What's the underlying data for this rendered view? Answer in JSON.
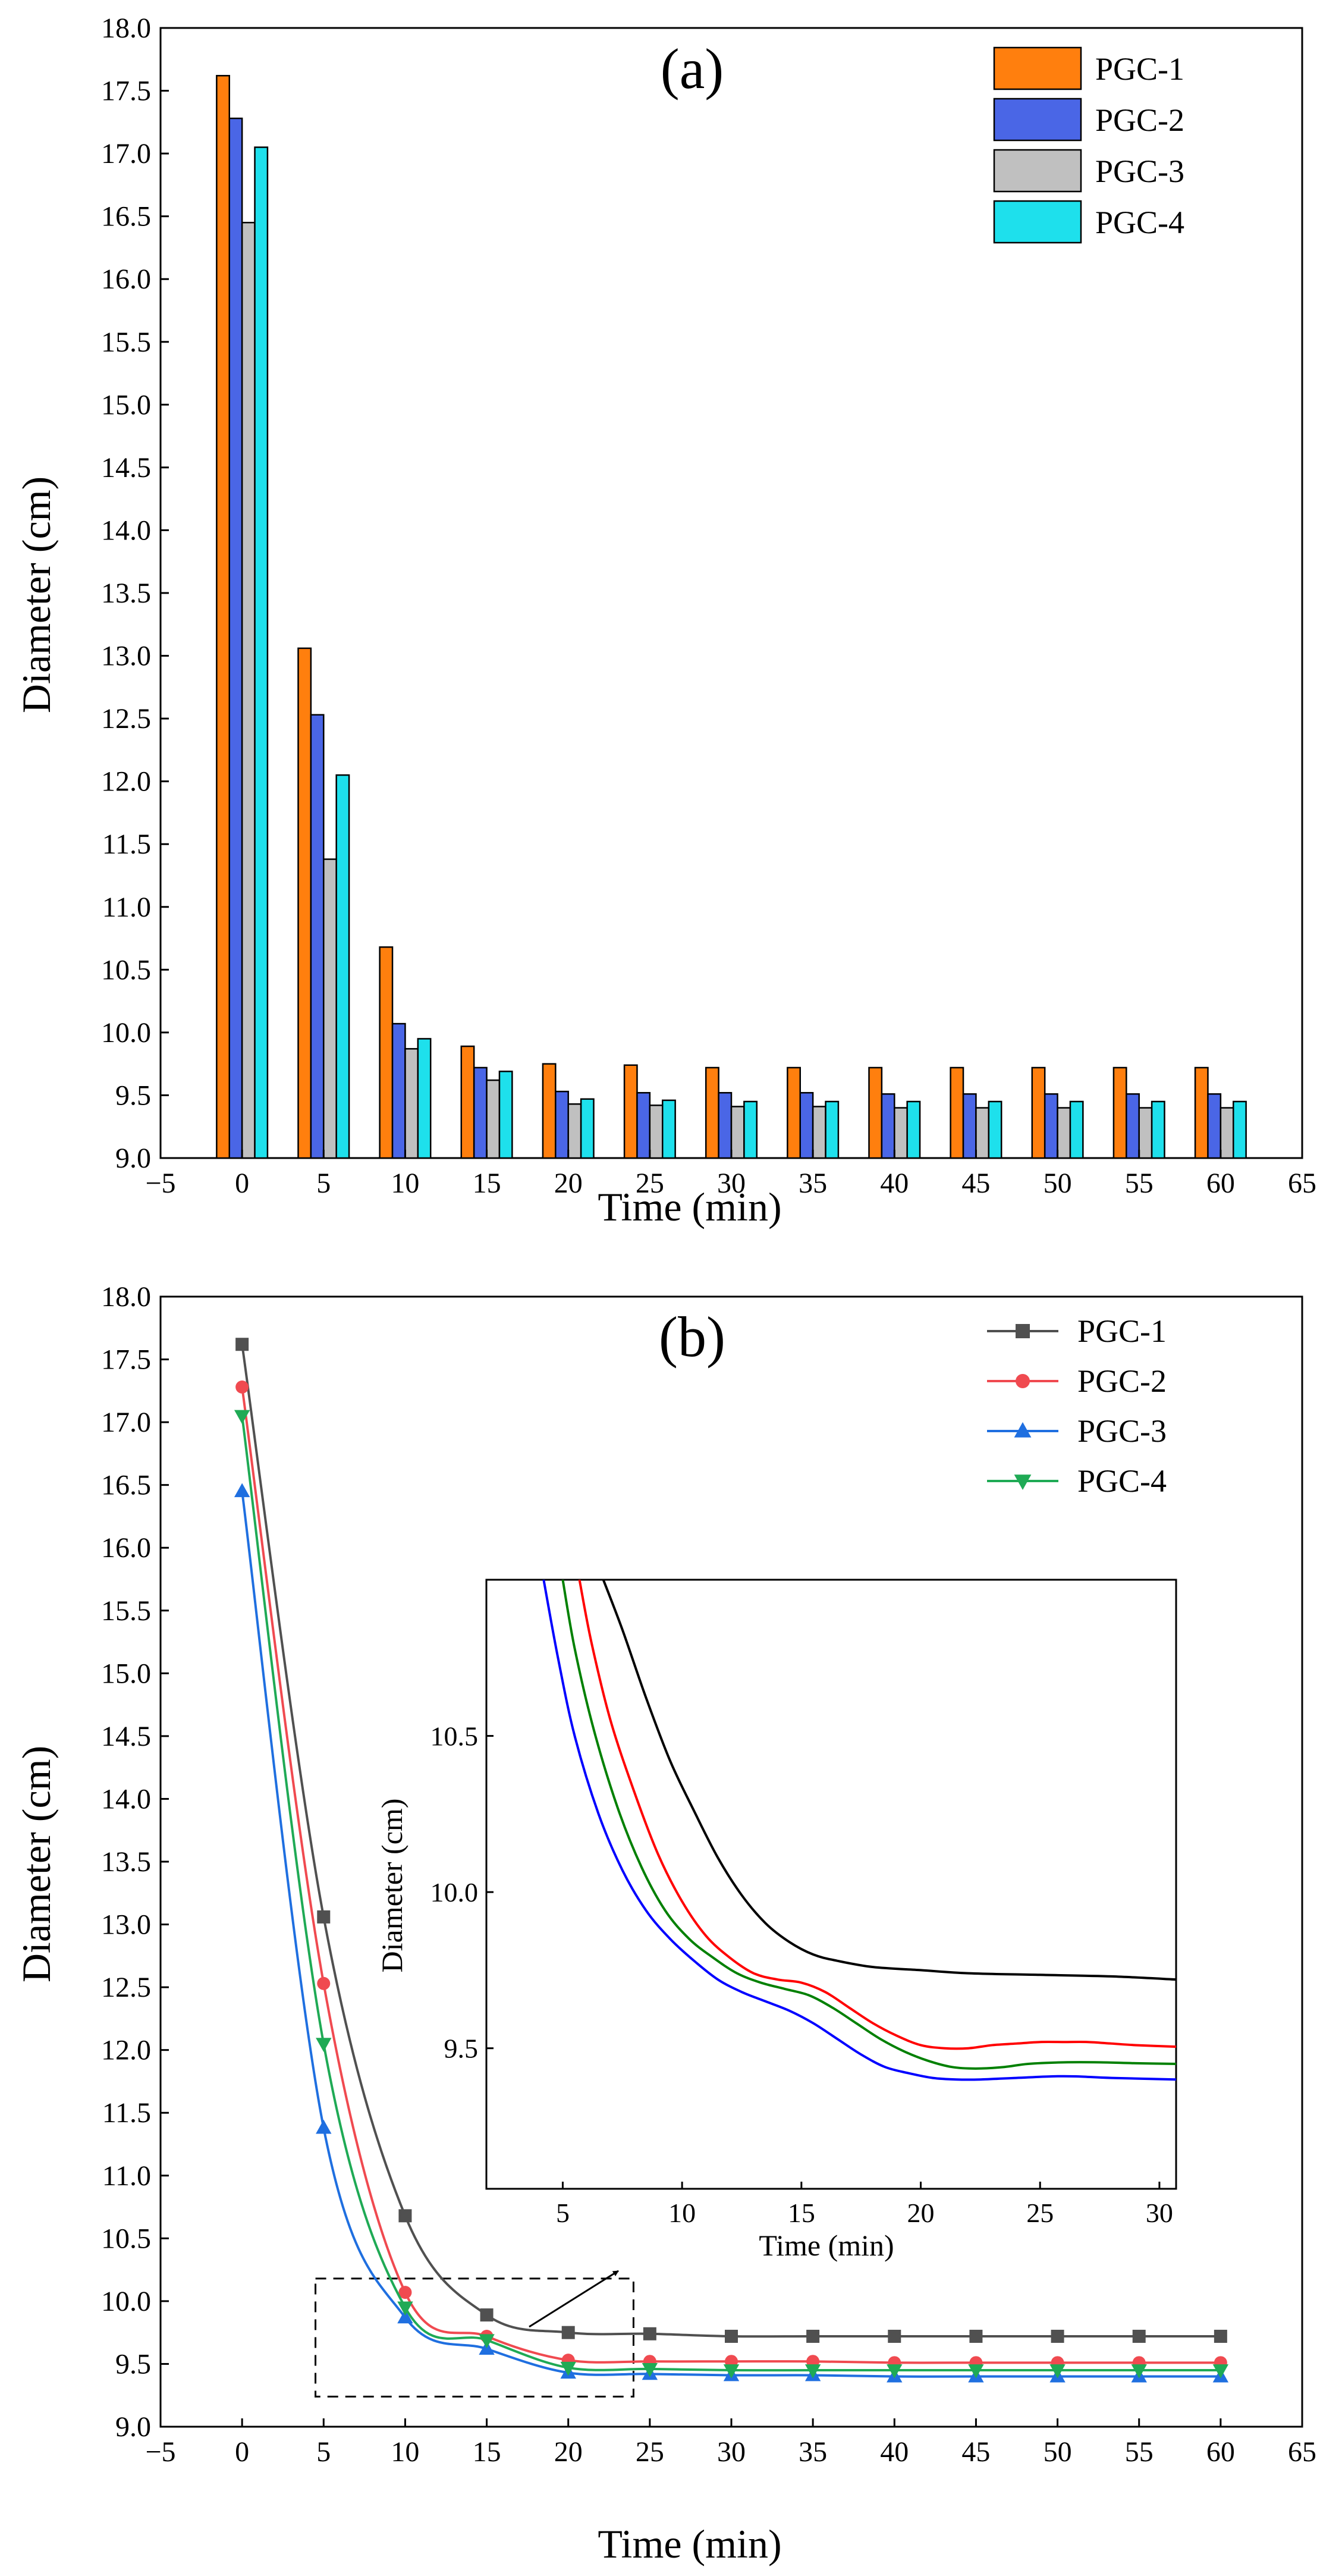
{
  "chart_data": [
    {
      "type": "bar",
      "panel_label": "(a)",
      "xlabel": "Time (min)",
      "ylabel": "Diameter (cm)",
      "xlim": [
        -5,
        65
      ],
      "ylim": [
        9.0,
        18.0
      ],
      "xticks": [
        "−5",
        "0",
        "5",
        "10",
        "15",
        "20",
        "25",
        "30",
        "35",
        "40",
        "45",
        "50",
        "55",
        "60",
        "65"
      ],
      "yticks": [
        "9.0",
        "9.5",
        "10.0",
        "10.5",
        "11.0",
        "11.5",
        "12.0",
        "12.5",
        "13.0",
        "13.5",
        "14.0",
        "14.5",
        "15.0",
        "15.5",
        "16.0",
        "16.5",
        "17.0",
        "17.5",
        "18.0"
      ],
      "categories": [
        0,
        5,
        10,
        15,
        20,
        25,
        30,
        35,
        40,
        45,
        50,
        55,
        60
      ],
      "legend_position": "top-right",
      "grid": false,
      "series": [
        {
          "name": "PGC-1",
          "color": "#ff7f0e",
          "values": [
            17.62,
            13.06,
            10.68,
            9.89,
            9.75,
            9.74,
            9.72,
            9.72,
            9.72,
            9.72,
            9.72,
            9.72,
            9.72
          ]
        },
        {
          "name": "PGC-2",
          "color": "#4a66e6",
          "values": [
            17.28,
            12.53,
            10.07,
            9.72,
            9.53,
            9.52,
            9.52,
            9.52,
            9.51,
            9.51,
            9.51,
            9.51,
            9.51
          ]
        },
        {
          "name": "PGC-3",
          "color": "#c0c0c0",
          "values": [
            16.45,
            11.38,
            9.87,
            9.62,
            9.43,
            9.42,
            9.41,
            9.41,
            9.4,
            9.4,
            9.4,
            9.4,
            9.4
          ]
        },
        {
          "name": "PGC-4",
          "color": "#1ee0ec",
          "values": [
            17.05,
            12.05,
            9.95,
            9.69,
            9.47,
            9.46,
            9.45,
            9.45,
            9.45,
            9.45,
            9.45,
            9.45,
            9.45
          ]
        }
      ]
    },
    {
      "type": "line",
      "panel_label": "(b)",
      "xlabel": "Time (min)",
      "ylabel": "Diameter (cm)",
      "xlim": [
        -5,
        65
      ],
      "ylim": [
        9.0,
        18.0
      ],
      "xticks": [
        "−5",
        "0",
        "5",
        "10",
        "15",
        "20",
        "25",
        "30",
        "35",
        "40",
        "45",
        "50",
        "55",
        "60",
        "65"
      ],
      "yticks": [
        "9.0",
        "9.5",
        "10.0",
        "10.5",
        "11.0",
        "11.5",
        "12.0",
        "12.5",
        "13.0",
        "13.5",
        "14.0",
        "14.5",
        "15.0",
        "15.5",
        "16.0",
        "16.5",
        "17.0",
        "17.5",
        "18.0"
      ],
      "x": [
        0,
        5,
        10,
        15,
        20,
        25,
        30,
        35,
        40,
        45,
        50,
        55,
        60
      ],
      "legend_position": "top-right",
      "grid": false,
      "series": [
        {
          "name": "PGC-1",
          "color": "#505050",
          "marker": "square",
          "values": [
            17.62,
            13.06,
            10.68,
            9.89,
            9.75,
            9.74,
            9.72,
            9.72,
            9.72,
            9.72,
            9.72,
            9.72,
            9.72
          ]
        },
        {
          "name": "PGC-2",
          "color": "#f04a50",
          "marker": "circle",
          "values": [
            17.28,
            12.53,
            10.07,
            9.72,
            9.53,
            9.52,
            9.52,
            9.52,
            9.51,
            9.51,
            9.51,
            9.51,
            9.51
          ]
        },
        {
          "name": "PGC-3",
          "color": "#1f6fe0",
          "marker": "triangle-up",
          "values": [
            16.45,
            11.38,
            9.87,
            9.62,
            9.43,
            9.42,
            9.41,
            9.41,
            9.4,
            9.4,
            9.4,
            9.4,
            9.4
          ]
        },
        {
          "name": "PGC-4",
          "color": "#1faa55",
          "marker": "triangle-down",
          "values": [
            17.05,
            12.05,
            9.95,
            9.69,
            9.47,
            9.46,
            9.45,
            9.45,
            9.45,
            9.45,
            9.45,
            9.45,
            9.45
          ]
        }
      ],
      "zoom_box": {
        "xlim": [
          4.5,
          24
        ],
        "ylim": [
          9.24,
          10.18
        ]
      },
      "inset": {
        "type": "line",
        "xlabel": "Time (min)",
        "ylabel": "Diameter (cm)",
        "xlim": [
          1.8,
          30.7
        ],
        "ylim": [
          9.05,
          11.0
        ],
        "xticks": [
          "5",
          "10",
          "15",
          "20",
          "25",
          "30"
        ],
        "yticks": [
          "9.5",
          "10.0",
          "10.5"
        ],
        "series": [
          {
            "name": "PGC-1",
            "color": "#000000",
            "points": [
              [
                6.7,
                11.0
              ],
              [
                7.5,
                10.84
              ],
              [
                8.5,
                10.62
              ],
              [
                9.5,
                10.42
              ],
              [
                10.5,
                10.26
              ],
              [
                11.5,
                10.11
              ],
              [
                12.5,
                9.99
              ],
              [
                13.5,
                9.9
              ],
              [
                14.5,
                9.84
              ],
              [
                15.5,
                9.8
              ],
              [
                16.5,
                9.78
              ],
              [
                18,
                9.76
              ],
              [
                20,
                9.75
              ],
              [
                22,
                9.74
              ],
              [
                25,
                9.735
              ],
              [
                28,
                9.73
              ],
              [
                30.7,
                9.72
              ]
            ]
          },
          {
            "name": "PGC-2",
            "color": "#ff0000",
            "points": [
              [
                5.7,
                11.0
              ],
              [
                6.2,
                10.8
              ],
              [
                7,
                10.55
              ],
              [
                8,
                10.32
              ],
              [
                9,
                10.12
              ],
              [
                10,
                9.97
              ],
              [
                11,
                9.86
              ],
              [
                12,
                9.79
              ],
              [
                13,
                9.74
              ],
              [
                14,
                9.72
              ],
              [
                15,
                9.71
              ],
              [
                16,
                9.68
              ],
              [
                17,
                9.63
              ],
              [
                18,
                9.58
              ],
              [
                19,
                9.54
              ],
              [
                20,
                9.51
              ],
              [
                21,
                9.5
              ],
              [
                22,
                9.5
              ],
              [
                23,
                9.51
              ],
              [
                24,
                9.515
              ],
              [
                25,
                9.52
              ],
              [
                26,
                9.52
              ],
              [
                27,
                9.52
              ],
              [
                28,
                9.515
              ],
              [
                29,
                9.51
              ],
              [
                30.7,
                9.505
              ]
            ]
          },
          {
            "name": "PGC-3",
            "color": "#0000ff",
            "points": [
              [
                4.2,
                11.0
              ],
              [
                4.8,
                10.75
              ],
              [
                5.5,
                10.5
              ],
              [
                6.5,
                10.25
              ],
              [
                7.5,
                10.07
              ],
              [
                8.5,
                9.94
              ],
              [
                9.5,
                9.85
              ],
              [
                10.5,
                9.78
              ],
              [
                11.5,
                9.72
              ],
              [
                12.5,
                9.68
              ],
              [
                13.5,
                9.65
              ],
              [
                14.5,
                9.62
              ],
              [
                15.5,
                9.58
              ],
              [
                16.5,
                9.53
              ],
              [
                17.5,
                9.48
              ],
              [
                18.5,
                9.44
              ],
              [
                19.5,
                9.42
              ],
              [
                20.5,
                9.405
              ],
              [
                21.5,
                9.4
              ],
              [
                22.5,
                9.4
              ],
              [
                24,
                9.405
              ],
              [
                25.5,
                9.41
              ],
              [
                26.5,
                9.41
              ],
              [
                28,
                9.405
              ],
              [
                30.7,
                9.4
              ]
            ]
          },
          {
            "name": "PGC-4",
            "color": "#008000",
            "points": [
              [
                5.0,
                11.0
              ],
              [
                5.5,
                10.78
              ],
              [
                6.3,
                10.52
              ],
              [
                7.3,
                10.27
              ],
              [
                8.3,
                10.08
              ],
              [
                9.3,
                9.94
              ],
              [
                10.3,
                9.85
              ],
              [
                11.3,
                9.79
              ],
              [
                12.3,
                9.74
              ],
              [
                13.3,
                9.71
              ],
              [
                14.3,
                9.69
              ],
              [
                15.3,
                9.67
              ],
              [
                16.3,
                9.63
              ],
              [
                17.3,
                9.58
              ],
              [
                18.3,
                9.53
              ],
              [
                19.3,
                9.49
              ],
              [
                20.3,
                9.46
              ],
              [
                21.3,
                9.44
              ],
              [
                22.3,
                9.435
              ],
              [
                23.5,
                9.44
              ],
              [
                24.5,
                9.45
              ],
              [
                26,
                9.455
              ],
              [
                27.5,
                9.455
              ],
              [
                29,
                9.452
              ],
              [
                30.7,
                9.45
              ]
            ]
          }
        ]
      }
    }
  ]
}
